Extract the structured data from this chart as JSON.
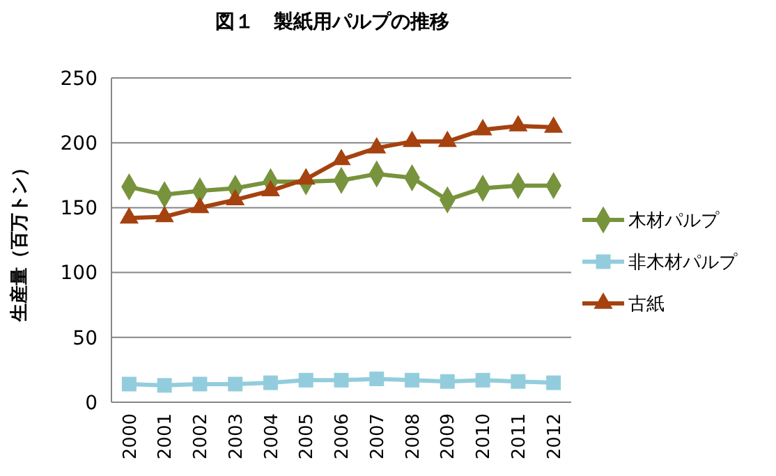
{
  "chart_data": {
    "type": "line",
    "title": "図１　製紙用パルプの推移",
    "ylabel": "生産量（百万トン）",
    "categories": [
      "2000",
      "2001",
      "2002",
      "2003",
      "2004",
      "2005",
      "2006",
      "2007",
      "2008",
      "2009",
      "2010",
      "2011",
      "2012"
    ],
    "series": [
      {
        "name": "木材パルプ",
        "color": "#77933c",
        "marker": "diamond",
        "values": [
          166,
          160,
          163,
          165,
          170,
          170,
          171,
          176,
          173,
          156,
          165,
          167,
          167
        ]
      },
      {
        "name": "非木材パルプ",
        "color": "#93cddd",
        "marker": "square",
        "values": [
          14,
          13,
          14,
          14,
          15,
          17,
          17,
          18,
          17,
          16,
          17,
          16,
          15
        ]
      },
      {
        "name": "古紙",
        "color": "#a5420f",
        "marker": "triangle",
        "values": [
          142,
          143,
          150,
          156,
          163,
          172,
          187,
          196,
          201,
          201,
          210,
          213,
          212
        ]
      }
    ],
    "ylim": [
      0,
      250
    ],
    "yticks": [
      0,
      50,
      100,
      150,
      200,
      250
    ],
    "grid": "y",
    "legend": "right"
  }
}
